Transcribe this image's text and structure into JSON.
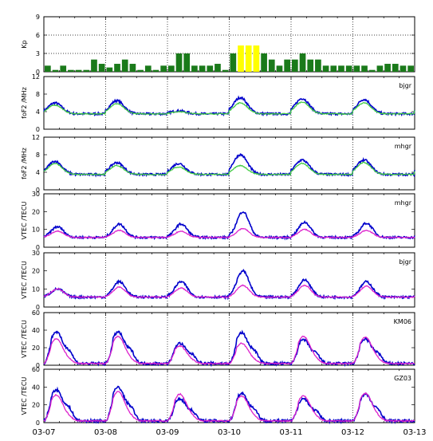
{
  "chart_data": [
    {
      "type": "bar",
      "panel": "kp",
      "ylabel": "Kp",
      "ylim": [
        0,
        9
      ],
      "yticks": [
        "0",
        "3",
        "6",
        "9"
      ],
      "series": [
        {
          "values": [
            1.0,
            0.3,
            1.0,
            0.3,
            0.3,
            0.3,
            2.0,
            1.3,
            0.7,
            1.3,
            2.0,
            1.3,
            0.3,
            1.0,
            0.3,
            1.0,
            1.0,
            3.0,
            3.0,
            1.0,
            1.0,
            1.0,
            1.3,
            0.3,
            3.0,
            4.3,
            4.3,
            4.3,
            3.0,
            2.0,
            1.0,
            2.0,
            2.0,
            3.0,
            2.0,
            2.0,
            1.0,
            1.0,
            1.0,
            1.0,
            1.0,
            1.0,
            0.3,
            1.0,
            1.3,
            1.3,
            1.0,
            1.0
          ],
          "colors": {
            "normal": "#1a7a1a",
            "storm": "#ffff00"
          }
        }
      ]
    },
    {
      "type": "line",
      "panel": "foF2 bjgr",
      "station": "bjgr",
      "ylabel": "foF2 /MHz",
      "ylim": [
        0,
        12
      ],
      "yticks": [
        "0",
        "4",
        "8",
        "12"
      ],
      "series": [
        {
          "color": "#0000cc",
          "peaks": [
            6.0,
            6.5,
            4.2,
            7.2,
            7.0,
            6.8
          ],
          "x": [
            0,
            0.25,
            0.5,
            0.75,
            1
          ],
          "y_day1": [
            6,
            5.5,
            3.8,
            3.5,
            3.5
          ]
        },
        {
          "color": "#44cc44",
          "peaks": [
            5.5,
            5.8,
            4.0,
            6.0,
            6.2,
            6.0
          ]
        }
      ]
    },
    {
      "type": "line",
      "panel": "foF2 mhgr",
      "station": "mhgr",
      "ylabel": "foF2 /MHz",
      "ylim": [
        0,
        12
      ],
      "yticks": [
        "0",
        "4",
        "8",
        "12"
      ],
      "series": [
        {
          "color": "#0000cc",
          "peaks": [
            6.5,
            6.2,
            6.0,
            8.0,
            6.8,
            6.8
          ]
        },
        {
          "color": "#44cc44",
          "peaks": [
            6.0,
            5.5,
            5.2,
            5.5,
            6.0,
            6.2
          ]
        }
      ]
    },
    {
      "type": "line",
      "panel": "VTEC mhgr",
      "station": "mhgr",
      "ylabel": "VTEC /TECU",
      "ylim": [
        0,
        30
      ],
      "yticks": [
        "0",
        "10",
        "20",
        "30"
      ],
      "series": [
        {
          "color": "#0000cc",
          "peaks": [
            11.5,
            13.0,
            13.0,
            20.0,
            14.0,
            13.5
          ]
        },
        {
          "color": "#dd22cc",
          "peaks": [
            9.0,
            9.5,
            9.0,
            10.5,
            10.0,
            9.5
          ]
        }
      ]
    },
    {
      "type": "line",
      "panel": "VTEC bjgr",
      "station": "bjgr",
      "ylabel": "VTEC /TECU",
      "ylim": [
        0,
        30
      ],
      "yticks": [
        "0",
        "10",
        "20",
        "30"
      ],
      "series": [
        {
          "color": "#0000cc",
          "peaks": [
            10.0,
            14.0,
            14.0,
            20.0,
            15.0,
            14.0
          ]
        },
        {
          "color": "#dd22cc",
          "peaks": [
            10.0,
            11.0,
            10.5,
            12.0,
            12.0,
            11.5
          ]
        }
      ]
    },
    {
      "type": "line",
      "panel": "VTEC KM06",
      "station": "KM06",
      "ylabel": "VTEC /TECU",
      "ylim": [
        0,
        60
      ],
      "yticks": [
        "0",
        "20",
        "40",
        "60"
      ],
      "series": [
        {
          "color": "#0000cc",
          "peaks": [
            38,
            38,
            25,
            37,
            29,
            30
          ]
        },
        {
          "color": "#dd22cc",
          "peaks": [
            30,
            33,
            22,
            25,
            33,
            32
          ]
        }
      ]
    },
    {
      "type": "line",
      "panel": "VTEC GZ03",
      "station": "GZ03",
      "ylabel": "VTEC /TECU",
      "ylim": [
        0,
        60
      ],
      "yticks": [
        "0",
        "20",
        "40",
        "60"
      ],
      "series": [
        {
          "color": "#0000cc",
          "peaks": [
            37,
            40,
            27,
            33,
            27,
            32
          ]
        },
        {
          "color": "#dd22cc",
          "peaks": [
            31,
            35,
            32,
            30,
            30,
            33
          ]
        }
      ]
    }
  ],
  "x_axis": {
    "ticks": [
      "03-07",
      "03-08",
      "03-09",
      "03-10",
      "03-11",
      "03-12",
      "03-13"
    ],
    "days": 6
  }
}
